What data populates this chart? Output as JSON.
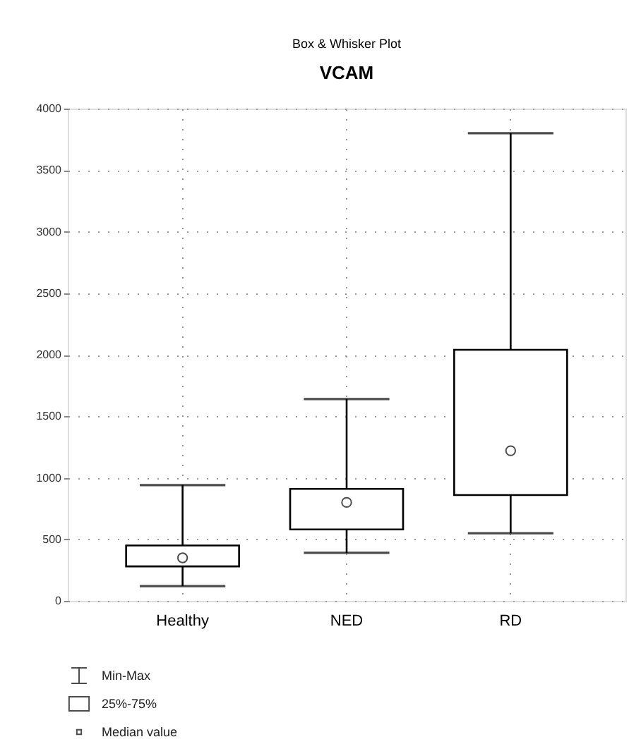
{
  "chart_data": {
    "type": "box",
    "subtitle": "Box & Whisker Plot",
    "title": "VCAM",
    "categories": [
      "Healthy",
      "NED",
      "RD"
    ],
    "boxes": [
      {
        "low": 120,
        "q1": 280,
        "median": 350,
        "q3": 450,
        "high": 940
      },
      {
        "low": 390,
        "q1": 580,
        "median": 800,
        "q3": 910,
        "high": 1640
      },
      {
        "low": 550,
        "q1": 860,
        "median": 1220,
        "q3": 2040,
        "high": 3800
      }
    ],
    "ylim": [
      0,
      4000
    ],
    "yticks": [
      0,
      500,
      1000,
      1500,
      2000,
      2500,
      3000,
      3500,
      4000
    ],
    "grid": true,
    "annotations": [
      "Min-Max",
      "25%-75%",
      "Median value"
    ]
  }
}
